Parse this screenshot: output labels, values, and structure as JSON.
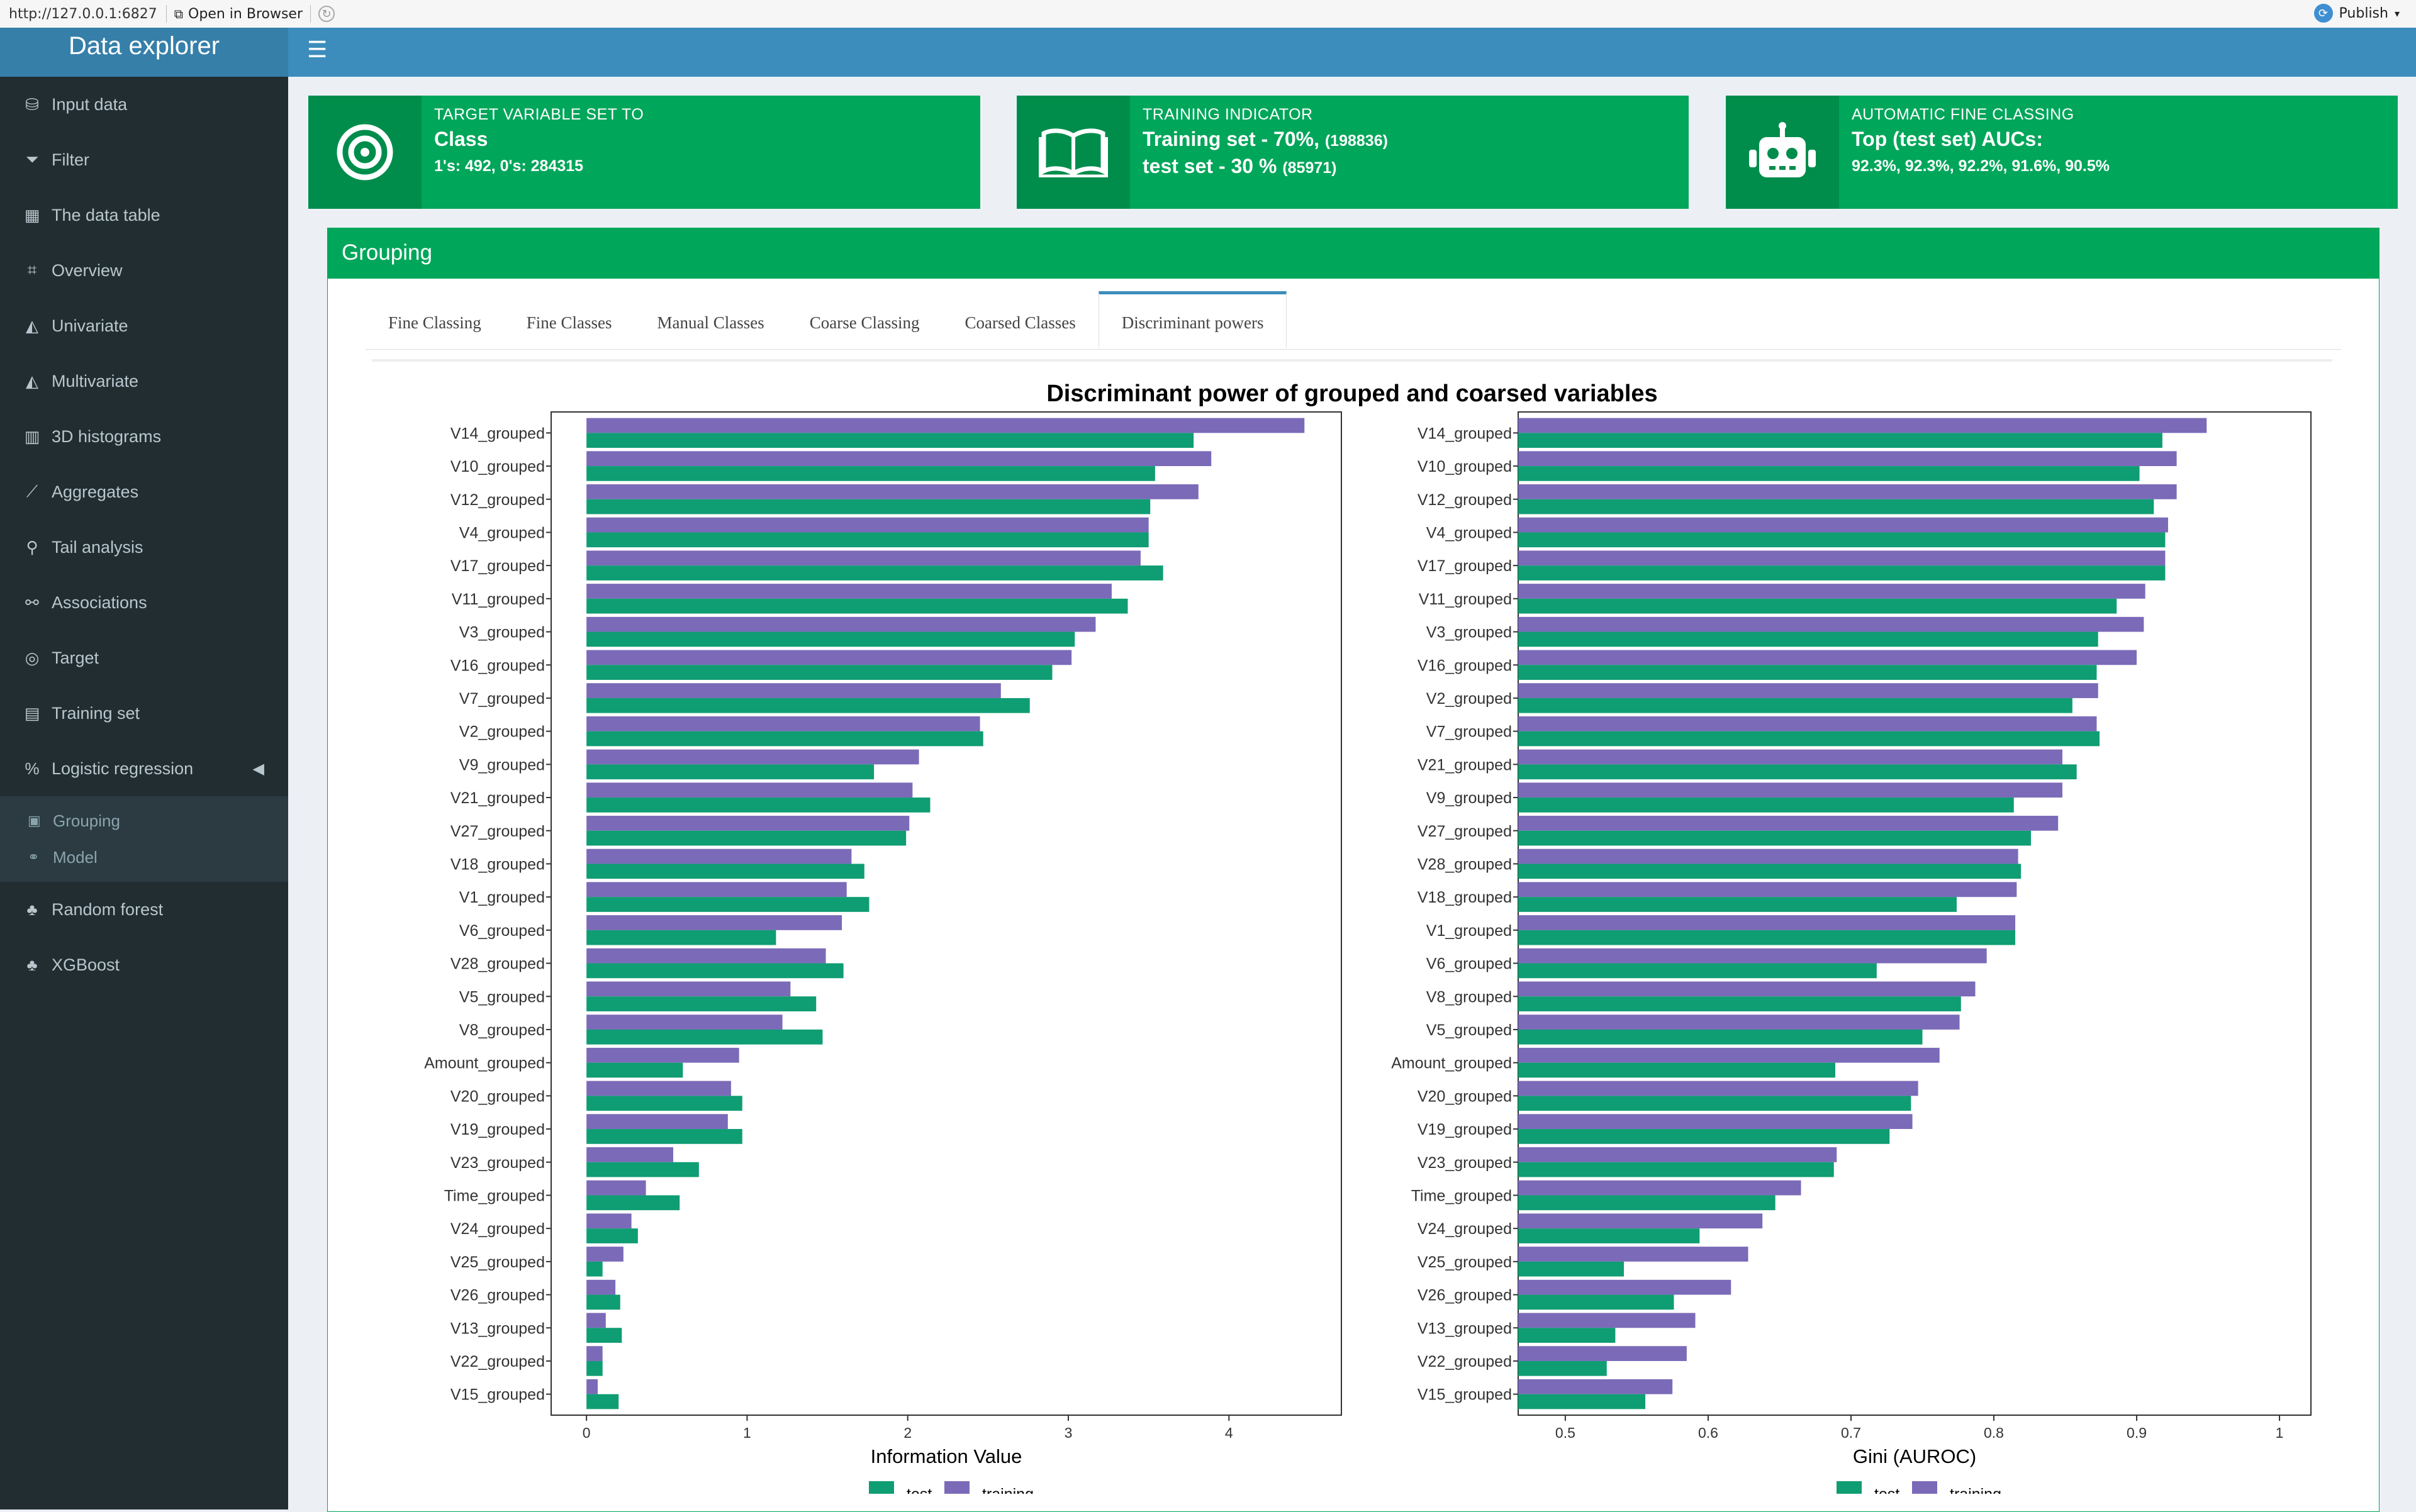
{
  "browser": {
    "url": "http://127.0.0.1:6827",
    "open_label": "Open in Browser",
    "publish_label": "Publish"
  },
  "sidebar": {
    "title": "Data explorer",
    "items": [
      {
        "label": "Input data",
        "icon": "database-icon"
      },
      {
        "label": "Filter",
        "icon": "filter-icon"
      },
      {
        "label": "The data table",
        "icon": "table-icon"
      },
      {
        "label": "Overview",
        "icon": "binoculars-icon"
      },
      {
        "label": "Univariate",
        "icon": "area-chart-icon"
      },
      {
        "label": "Multivariate",
        "icon": "area-chart-icon"
      },
      {
        "label": "3D histograms",
        "icon": "bar-chart-icon"
      },
      {
        "label": "Aggregates",
        "icon": "line-chart-icon"
      },
      {
        "label": "Tail analysis",
        "icon": "search-icon"
      },
      {
        "label": "Associations",
        "icon": "sitemap-icon"
      },
      {
        "label": "Target",
        "icon": "bullseye-icon"
      },
      {
        "label": "Training set",
        "icon": "book-icon"
      },
      {
        "label": "Logistic regression",
        "icon": "percent-icon"
      }
    ],
    "subitems": [
      {
        "label": "Grouping",
        "icon": "object-group-icon"
      },
      {
        "label": "Model",
        "icon": "diagram-icon"
      }
    ],
    "items_after": [
      {
        "label": "Random forest",
        "icon": "tree-icon"
      },
      {
        "label": "XGBoost",
        "icon": "tree-icon"
      }
    ]
  },
  "infoboxes": [
    {
      "caption": "TARGET VARIABLE SET TO",
      "main": "Class",
      "detail": "1's: 492, 0's: 284315"
    },
    {
      "caption": "TRAINING INDICATOR",
      "main": "Training set - 70%,",
      "main_small": "(198836)",
      "second": "test set - 30 %",
      "second_small": "(85971)"
    },
    {
      "caption": "AUTOMATIC FINE CLASSING",
      "main": "Top (test set) AUCs:",
      "detail": "92.3%, 92.3%, 92.2%, 91.6%, 90.5%"
    }
  ],
  "grouping": {
    "title": "Grouping",
    "tabs": [
      "Fine Classing",
      "Fine Classes",
      "Manual Classes",
      "Coarse Classing",
      "Coarsed Classes",
      "Discriminant powers"
    ],
    "active_tab": "Discriminant powers"
  },
  "colors": {
    "test": "#0f9d73",
    "training": "#7b6ab8"
  },
  "chart_data": [
    {
      "type": "bar",
      "orientation": "horizontal",
      "title": "Discriminant power of grouped and coarsed variables",
      "xlabel": "Information Value",
      "xlim": [
        -0.22,
        4.7
      ],
      "xticks": [
        0,
        1,
        2,
        3,
        4
      ],
      "categories": [
        "V14_grouped",
        "V10_grouped",
        "V12_grouped",
        "V4_grouped",
        "V17_grouped",
        "V11_grouped",
        "V3_grouped",
        "V16_grouped",
        "V7_grouped",
        "V2_grouped",
        "V9_grouped",
        "V21_grouped",
        "V27_grouped",
        "V18_grouped",
        "V1_grouped",
        "V6_grouped",
        "V28_grouped",
        "V5_grouped",
        "V8_grouped",
        "Amount_grouped",
        "V20_grouped",
        "V19_grouped",
        "V23_grouped",
        "Time_grouped",
        "V24_grouped",
        "V25_grouped",
        "V26_grouped",
        "V13_grouped",
        "V22_grouped",
        "V15_grouped"
      ],
      "series": [
        {
          "name": "training",
          "values": [
            4.47,
            3.89,
            3.81,
            3.5,
            3.45,
            3.27,
            3.17,
            3.02,
            2.58,
            2.45,
            2.07,
            2.03,
            2.01,
            1.65,
            1.62,
            1.59,
            1.49,
            1.27,
            1.22,
            0.95,
            0.9,
            0.88,
            0.54,
            0.37,
            0.28,
            0.23,
            0.18,
            0.12,
            0.1,
            0.07
          ]
        },
        {
          "name": "test",
          "values": [
            3.78,
            3.54,
            3.51,
            3.5,
            3.59,
            3.37,
            3.04,
            2.9,
            2.76,
            2.47,
            1.79,
            2.14,
            1.99,
            1.73,
            1.76,
            1.18,
            1.6,
            1.43,
            1.47,
            0.6,
            0.97,
            0.97,
            0.7,
            0.58,
            0.32,
            0.1,
            0.21,
            0.22,
            0.1,
            0.2
          ]
        }
      ],
      "legend": "bottom"
    },
    {
      "type": "bar",
      "orientation": "horizontal",
      "xlabel": "Gini (AUROC)",
      "xlim": [
        0.467,
        1.022
      ],
      "xticks": [
        0.5,
        0.6,
        0.7,
        0.8,
        0.9,
        1
      ],
      "categories": [
        "V14_grouped",
        "V10_grouped",
        "V12_grouped",
        "V4_grouped",
        "V17_grouped",
        "V11_grouped",
        "V3_grouped",
        "V16_grouped",
        "V2_grouped",
        "V7_grouped",
        "V21_grouped",
        "V9_grouped",
        "V27_grouped",
        "V28_grouped",
        "V18_grouped",
        "V1_grouped",
        "V6_grouped",
        "V8_grouped",
        "V5_grouped",
        "Amount_grouped",
        "V20_grouped",
        "V19_grouped",
        "V23_grouped",
        "Time_grouped",
        "V24_grouped",
        "V25_grouped",
        "V26_grouped",
        "V13_grouped",
        "V22_grouped",
        "V15_grouped"
      ],
      "series": [
        {
          "name": "training",
          "values": [
            0.949,
            0.928,
            0.928,
            0.922,
            0.92,
            0.906,
            0.905,
            0.9,
            0.873,
            0.872,
            0.848,
            0.848,
            0.845,
            0.817,
            0.816,
            0.815,
            0.795,
            0.787,
            0.776,
            0.762,
            0.747,
            0.743,
            0.69,
            0.665,
            0.638,
            0.628,
            0.616,
            0.591,
            0.585,
            0.575
          ]
        },
        {
          "name": "test",
          "values": [
            0.918,
            0.902,
            0.912,
            0.92,
            0.92,
            0.886,
            0.873,
            0.872,
            0.855,
            0.874,
            0.858,
            0.814,
            0.826,
            0.819,
            0.774,
            0.815,
            0.718,
            0.777,
            0.75,
            0.689,
            0.742,
            0.727,
            0.688,
            0.647,
            0.594,
            0.541,
            0.576,
            0.535,
            0.529,
            0.556
          ]
        }
      ],
      "legend": "bottom"
    }
  ]
}
